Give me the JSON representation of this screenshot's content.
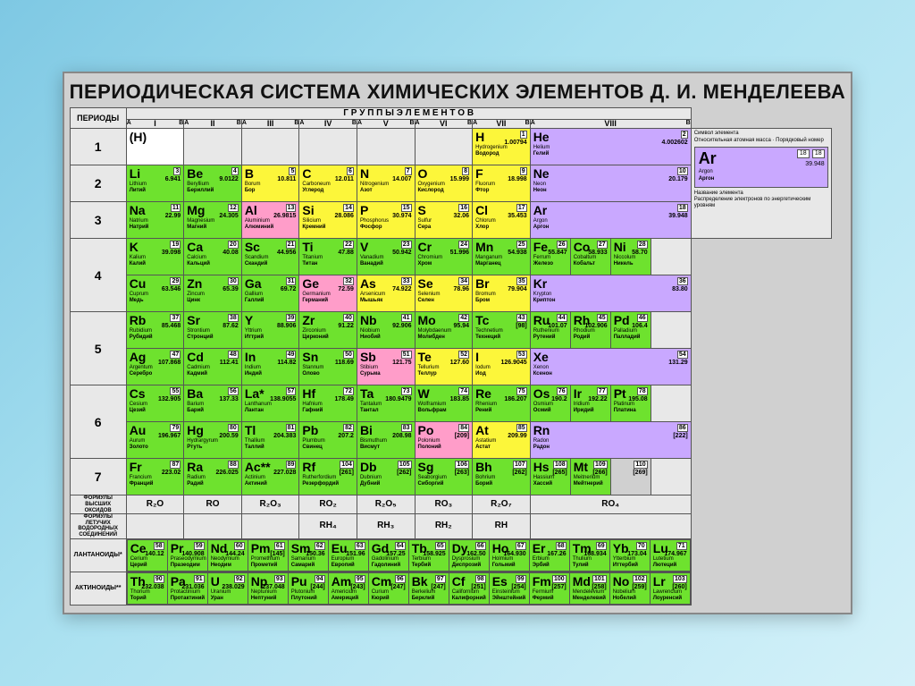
{
  "title": "ПЕРИОДИЧЕСКАЯ СИСТЕМА ХИМИЧЕСКИХ ЭЛЕМЕНТОВ Д. И. МЕНДЕЛЕЕВА",
  "labels": {
    "periods": "ПЕРИОДЫ",
    "groups": "Г Р У П П Ы   Э Л Е М Е Н Т О В",
    "oxide_formulas": "ФОРМУЛЫ ВЫСШИХ ОКСИДОВ",
    "hydride_formulas": "ФОРМУЛЫ ЛЕТУЧИХ ВОДОРОДНЫХ СОЕДИНЕНИЙ",
    "lanthanides": "ЛАНТАНОИДЫ*",
    "actinides": "АКТИНОИДЫ**"
  },
  "group_roman": [
    "I",
    "II",
    "III",
    "IV",
    "V",
    "VI",
    "VII",
    "VIII"
  ],
  "sub": [
    "A",
    "B"
  ],
  "oxides": [
    "R₂O",
    "RO",
    "R₂O₃",
    "RO₂",
    "R₂O₅",
    "RO₃",
    "R₂O₇",
    "RO₄"
  ],
  "hydrides": [
    "",
    "",
    "",
    "RH₄",
    "RH₃",
    "RH₂",
    "RH",
    ""
  ],
  "colors": {
    "green": "#6ee22e",
    "yellow": "#fcf63a",
    "violet": "#c9a8ff",
    "pink": "#ff9dc9",
    "grey": "#d0d0d0"
  },
  "legend": {
    "symbol_label": "Символ элемента",
    "mass_label": "Относительная атомная масса",
    "num_label": "Порядковый номер",
    "name_label": "Название элемента",
    "electron_label": "Распределение электронов по энергетическим уровням",
    "sample": {
      "sym": "Ar",
      "num": "18",
      "mass": "39.948",
      "la": "Argon",
      "ru": "Аргон",
      "shells": "2 8 8"
    }
  },
  "rows": [
    {
      "period": "1",
      "cells": [
        {
          "c": "white",
          "sym": "(H)"
        },
        null,
        null,
        null,
        null,
        null,
        {
          "c": "yellow",
          "sym": "H",
          "num": "1",
          "mass": "1.00794",
          "la": "Hydrogenium",
          "ru": "Водород"
        },
        {
          "c": "violet",
          "sym": "He",
          "num": "2",
          "mass": "4.002602",
          "la": "Helium",
          "ru": "Гелий"
        }
      ]
    },
    {
      "period": "2",
      "cells": [
        {
          "c": "green",
          "sym": "Li",
          "num": "3",
          "mass": "6.941",
          "la": "Lithium",
          "ru": "Литий"
        },
        {
          "c": "green",
          "sym": "Be",
          "num": "4",
          "mass": "9.0122",
          "la": "Beryllium",
          "ru": "Бериллий"
        },
        {
          "c": "yellow",
          "sym": "B",
          "num": "5",
          "mass": "10.811",
          "la": "Borum",
          "ru": "Бор"
        },
        {
          "c": "yellow",
          "sym": "C",
          "num": "6",
          "mass": "12.011",
          "la": "Carboneum",
          "ru": "Углерод"
        },
        {
          "c": "yellow",
          "sym": "N",
          "num": "7",
          "mass": "14.007",
          "la": "Nitrogenium",
          "ru": "Азот"
        },
        {
          "c": "yellow",
          "sym": "O",
          "num": "8",
          "mass": "15.999",
          "la": "Oxygenium",
          "ru": "Кислород"
        },
        {
          "c": "yellow",
          "sym": "F",
          "num": "9",
          "mass": "18.998",
          "la": "Fluorum",
          "ru": "Фтор"
        },
        {
          "c": "violet",
          "sym": "Ne",
          "num": "10",
          "mass": "20.179",
          "la": "Neon",
          "ru": "Неон"
        }
      ]
    },
    {
      "period": "3",
      "cells": [
        {
          "c": "green",
          "sym": "Na",
          "num": "11",
          "mass": "22.99",
          "la": "Natrium",
          "ru": "Натрий"
        },
        {
          "c": "green",
          "sym": "Mg",
          "num": "12",
          "mass": "24.305",
          "la": "Magnesium",
          "ru": "Магний"
        },
        {
          "c": "pink",
          "sym": "Al",
          "num": "13",
          "mass": "26.9815",
          "la": "Aluminium",
          "ru": "Алюминий"
        },
        {
          "c": "yellow",
          "sym": "Si",
          "num": "14",
          "mass": "28.086",
          "la": "Silicium",
          "ru": "Кремний"
        },
        {
          "c": "yellow",
          "sym": "P",
          "num": "15",
          "mass": "30.974",
          "la": "Phosphorus",
          "ru": "Фосфор"
        },
        {
          "c": "yellow",
          "sym": "S",
          "num": "16",
          "mass": "32.06",
          "la": "Sulfur",
          "ru": "Сера"
        },
        {
          "c": "yellow",
          "sym": "Cl",
          "num": "17",
          "mass": "35.453",
          "la": "Chlorum",
          "ru": "Хлор"
        },
        {
          "c": "violet",
          "sym": "Ar",
          "num": "18",
          "mass": "39.948",
          "la": "Argon",
          "ru": "Аргон"
        }
      ]
    },
    {
      "period": "4",
      "upper": [
        {
          "c": "green",
          "sym": "K",
          "num": "19",
          "mass": "39.098",
          "la": "Kalium",
          "ru": "Калий"
        },
        {
          "c": "green",
          "sym": "Ca",
          "num": "20",
          "mass": "40.08",
          "la": "Calcium",
          "ru": "Кальций"
        },
        {
          "c": "green",
          "sym": "Sc",
          "num": "21",
          "mass": "44.956",
          "la": "Scandium",
          "ru": "Скандий"
        },
        {
          "c": "green",
          "sym": "Ti",
          "num": "22",
          "mass": "47.88",
          "la": "Titanium",
          "ru": "Титан"
        },
        {
          "c": "green",
          "sym": "V",
          "num": "23",
          "mass": "50.942",
          "la": "Vanadium",
          "ru": "Ванадий"
        },
        {
          "c": "green",
          "sym": "Cr",
          "num": "24",
          "mass": "51.996",
          "la": "Chromium",
          "ru": "Хром"
        },
        {
          "c": "green",
          "sym": "Mn",
          "num": "25",
          "mass": "54.938",
          "la": "Manganum",
          "ru": "Марганец"
        },
        {
          "c": "green",
          "sym": "Fe",
          "num": "26",
          "mass": "55.847",
          "la": "Ferrum",
          "ru": "Железо"
        },
        {
          "c": "green",
          "sym": "Co",
          "num": "27",
          "mass": "58.933",
          "la": "Cobaltum",
          "ru": "Кобальт"
        },
        {
          "c": "green",
          "sym": "Ni",
          "num": "28",
          "mass": "58.70",
          "la": "Niccolum",
          "ru": "Никель"
        }
      ],
      "lower": [
        {
          "c": "green",
          "sym": "Cu",
          "num": "29",
          "mass": "63.546",
          "la": "Cuprum",
          "ru": "Медь"
        },
        {
          "c": "green",
          "sym": "Zn",
          "num": "30",
          "mass": "65.39",
          "la": "Zincum",
          "ru": "Цинк"
        },
        {
          "c": "green",
          "sym": "Ga",
          "num": "31",
          "mass": "69.72",
          "la": "Gallium",
          "ru": "Галлий"
        },
        {
          "c": "pink",
          "sym": "Ge",
          "num": "32",
          "mass": "72.59",
          "la": "Germanium",
          "ru": "Германий"
        },
        {
          "c": "yellow",
          "sym": "As",
          "num": "33",
          "mass": "74.922",
          "la": "Arsenicum",
          "ru": "Мышьяк"
        },
        {
          "c": "yellow",
          "sym": "Se",
          "num": "34",
          "mass": "78.96",
          "la": "Selenium",
          "ru": "Селен"
        },
        {
          "c": "yellow",
          "sym": "Br",
          "num": "35",
          "mass": "79.904",
          "la": "Bromum",
          "ru": "Бром"
        },
        {
          "c": "violet",
          "sym": "Kr",
          "num": "36",
          "mass": "83.80",
          "la": "Krypton",
          "ru": "Криптон"
        }
      ]
    },
    {
      "period": "5",
      "upper": [
        {
          "c": "green",
          "sym": "Rb",
          "num": "37",
          "mass": "85.468",
          "la": "Rubidium",
          "ru": "Рубидий"
        },
        {
          "c": "green",
          "sym": "Sr",
          "num": "38",
          "mass": "87.62",
          "la": "Strontium",
          "ru": "Стронций"
        },
        {
          "c": "green",
          "sym": "Y",
          "num": "39",
          "mass": "88.906",
          "la": "Yttrium",
          "ru": "Иттрий"
        },
        {
          "c": "green",
          "sym": "Zr",
          "num": "40",
          "mass": "91.22",
          "la": "Zirconium",
          "ru": "Цирконий"
        },
        {
          "c": "green",
          "sym": "Nb",
          "num": "41",
          "mass": "92.906",
          "la": "Niobium",
          "ru": "Ниобий"
        },
        {
          "c": "green",
          "sym": "Mo",
          "num": "42",
          "mass": "95.94",
          "la": "Molybdaenum",
          "ru": "Молибден"
        },
        {
          "c": "green",
          "sym": "Tc",
          "num": "43",
          "mass": "[98]",
          "la": "Technetium",
          "ru": "Технеций"
        },
        {
          "c": "green",
          "sym": "Ru",
          "num": "44",
          "mass": "101.07",
          "la": "Ruthenium",
          "ru": "Рутений"
        },
        {
          "c": "green",
          "sym": "Rh",
          "num": "45",
          "mass": "102.906",
          "la": "Rhodium",
          "ru": "Родий"
        },
        {
          "c": "green",
          "sym": "Pd",
          "num": "46",
          "mass": "106.4",
          "la": "Palladium",
          "ru": "Палладий"
        }
      ],
      "lower": [
        {
          "c": "green",
          "sym": "Ag",
          "num": "47",
          "mass": "107.868",
          "la": "Argentum",
          "ru": "Серебро"
        },
        {
          "c": "green",
          "sym": "Cd",
          "num": "48",
          "mass": "112.41",
          "la": "Cadmium",
          "ru": "Кадмий"
        },
        {
          "c": "green",
          "sym": "In",
          "num": "49",
          "mass": "114.82",
          "la": "Indium",
          "ru": "Индий"
        },
        {
          "c": "green",
          "sym": "Sn",
          "num": "50",
          "mass": "118.69",
          "la": "Stannum",
          "ru": "Олово"
        },
        {
          "c": "pink",
          "sym": "Sb",
          "num": "51",
          "mass": "121.75",
          "la": "Stibium",
          "ru": "Сурьма"
        },
        {
          "c": "yellow",
          "sym": "Te",
          "num": "52",
          "mass": "127.60",
          "la": "Tellurium",
          "ru": "Теллур"
        },
        {
          "c": "yellow",
          "sym": "I",
          "num": "53",
          "mass": "126.9045",
          "la": "Iodum",
          "ru": "Иод"
        },
        {
          "c": "violet",
          "sym": "Xe",
          "num": "54",
          "mass": "131.29",
          "la": "Xenon",
          "ru": "Ксенон"
        }
      ]
    },
    {
      "period": "6",
      "upper": [
        {
          "c": "green",
          "sym": "Cs",
          "num": "55",
          "mass": "132.905",
          "la": "Cesium",
          "ru": "Цезий"
        },
        {
          "c": "green",
          "sym": "Ba",
          "num": "56",
          "mass": "137.33",
          "la": "Barium",
          "ru": "Барий"
        },
        {
          "c": "green",
          "sym": "La*",
          "num": "57",
          "mass": "138.9055",
          "la": "Lanthanum",
          "ru": "Лантан"
        },
        {
          "c": "green",
          "sym": "Hf",
          "num": "72",
          "mass": "178.49",
          "la": "Hafnium",
          "ru": "Гафний"
        },
        {
          "c": "green",
          "sym": "Ta",
          "num": "73",
          "mass": "180.9479",
          "la": "Tantalum",
          "ru": "Тантал"
        },
        {
          "c": "green",
          "sym": "W",
          "num": "74",
          "mass": "183.85",
          "la": "Wolframium",
          "ru": "Вольфрам"
        },
        {
          "c": "green",
          "sym": "Re",
          "num": "75",
          "mass": "186.207",
          "la": "Rhenium",
          "ru": "Рений"
        },
        {
          "c": "green",
          "sym": "Os",
          "num": "76",
          "mass": "190.2",
          "la": "Osmium",
          "ru": "Осмий"
        },
        {
          "c": "green",
          "sym": "Ir",
          "num": "77",
          "mass": "192.22",
          "la": "Iridium",
          "ru": "Иридий"
        },
        {
          "c": "green",
          "sym": "Pt",
          "num": "78",
          "mass": "195.08",
          "la": "Platinum",
          "ru": "Платина"
        }
      ],
      "lower": [
        {
          "c": "green",
          "sym": "Au",
          "num": "79",
          "mass": "196.967",
          "la": "Aurum",
          "ru": "Золото"
        },
        {
          "c": "green",
          "sym": "Hg",
          "num": "80",
          "mass": "200.59",
          "la": "Hydrargyrum",
          "ru": "Ртуть"
        },
        {
          "c": "green",
          "sym": "Tl",
          "num": "81",
          "mass": "204.383",
          "la": "Thallium",
          "ru": "Таллий"
        },
        {
          "c": "green",
          "sym": "Pb",
          "num": "82",
          "mass": "207.2",
          "la": "Plumbum",
          "ru": "Свинец"
        },
        {
          "c": "green",
          "sym": "Bi",
          "num": "83",
          "mass": "208.98",
          "la": "Bismuthum",
          "ru": "Висмут"
        },
        {
          "c": "pink",
          "sym": "Po",
          "num": "84",
          "mass": "[209]",
          "la": "Polonium",
          "ru": "Полоний"
        },
        {
          "c": "yellow",
          "sym": "At",
          "num": "85",
          "mass": "209.99",
          "la": "Astatium",
          "ru": "Астат"
        },
        {
          "c": "violet",
          "sym": "Rn",
          "num": "86",
          "mass": "[222]",
          "la": "Radon",
          "ru": "Радон"
        }
      ]
    },
    {
      "period": "7",
      "cells": [
        {
          "c": "green",
          "sym": "Fr",
          "num": "87",
          "mass": "223.02",
          "la": "Francium",
          "ru": "Франций"
        },
        {
          "c": "green",
          "sym": "Ra",
          "num": "88",
          "mass": "226.025",
          "la": "Radium",
          "ru": "Радий"
        },
        {
          "c": "green",
          "sym": "Ac**",
          "num": "89",
          "mass": "227.028",
          "la": "Actinium",
          "ru": "Актиний"
        },
        {
          "c": "green",
          "sym": "Rf",
          "num": "104",
          "mass": "[261]",
          "la": "Rutherfordium",
          "ru": "Резерфордий"
        },
        {
          "c": "green",
          "sym": "Db",
          "num": "105",
          "mass": "[262]",
          "la": "Dubnium",
          "ru": "Дубний"
        },
        {
          "c": "green",
          "sym": "Sg",
          "num": "106",
          "mass": "[263]",
          "la": "Seaborgium",
          "ru": "Сиборгий"
        },
        {
          "c": "green",
          "sym": "Bh",
          "num": "107",
          "mass": "[262]",
          "la": "Bohrium",
          "ru": "Борий"
        },
        {
          "c": "green",
          "sym": "Hs",
          "num": "108",
          "mass": "[265]",
          "la": "Hassium",
          "ru": "Хассий"
        },
        {
          "c": "green",
          "sym": "Mt",
          "num": "109",
          "mass": "[266]",
          "la": "Meitnerium",
          "ru": "Мейтнерий"
        },
        {
          "c": "grey",
          "sym": "",
          "num": "110",
          "mass": "[269]"
        }
      ]
    }
  ],
  "lanthanides": [
    {
      "sym": "Ce",
      "num": "58",
      "mass": "140.12",
      "la": "Cerium",
      "ru": "Церий"
    },
    {
      "sym": "Pr",
      "num": "59",
      "mass": "140.908",
      "la": "Praseodymium",
      "ru": "Празеодим"
    },
    {
      "sym": "Nd",
      "num": "60",
      "mass": "144.24",
      "la": "Neodymium",
      "ru": "Неодим"
    },
    {
      "sym": "Pm",
      "num": "61",
      "mass": "[145]",
      "la": "Promethium",
      "ru": "Прометий"
    },
    {
      "sym": "Sm",
      "num": "62",
      "mass": "150.36",
      "la": "Samarium",
      "ru": "Самарий"
    },
    {
      "sym": "Eu",
      "num": "63",
      "mass": "151.96",
      "la": "Europium",
      "ru": "Европий"
    },
    {
      "sym": "Gd",
      "num": "64",
      "mass": "157.25",
      "la": "Gadolinium",
      "ru": "Гадолиний"
    },
    {
      "sym": "Tb",
      "num": "65",
      "mass": "158.925",
      "la": "Terbium",
      "ru": "Тербий"
    },
    {
      "sym": "Dy",
      "num": "66",
      "mass": "162.50",
      "la": "Dysprosium",
      "ru": "Диспрозий"
    },
    {
      "sym": "Ho",
      "num": "67",
      "mass": "164.930",
      "la": "Holmium",
      "ru": "Гольмий"
    },
    {
      "sym": "Er",
      "num": "68",
      "mass": "167.26",
      "la": "Erbium",
      "ru": "Эрбий"
    },
    {
      "sym": "Tm",
      "num": "69",
      "mass": "168.934",
      "la": "Thulium",
      "ru": "Тулий"
    },
    {
      "sym": "Yb",
      "num": "70",
      "mass": "173.04",
      "la": "Ytterbium",
      "ru": "Иттербий"
    },
    {
      "sym": "Lu",
      "num": "71",
      "mass": "174.967",
      "la": "Lutetium",
      "ru": "Лютеций"
    }
  ],
  "actinides": [
    {
      "sym": "Th",
      "num": "90",
      "mass": "232.038",
      "la": "Thorium",
      "ru": "Торий"
    },
    {
      "sym": "Pa",
      "num": "91",
      "mass": "231.036",
      "la": "Protactinium",
      "ru": "Протактиний"
    },
    {
      "sym": "U",
      "num": "92",
      "mass": "238.029",
      "la": "Uranium",
      "ru": "Уран"
    },
    {
      "sym": "Np",
      "num": "93",
      "mass": "237.048",
      "la": "Neptunium",
      "ru": "Нептуний"
    },
    {
      "sym": "Pu",
      "num": "94",
      "mass": "[244]",
      "la": "Plutonium",
      "ru": "Плутоний"
    },
    {
      "sym": "Am",
      "num": "95",
      "mass": "[243]",
      "la": "Americium",
      "ru": "Америций"
    },
    {
      "sym": "Cm",
      "num": "96",
      "mass": "[247]",
      "la": "Curium",
      "ru": "Кюрий"
    },
    {
      "sym": "Bk",
      "num": "97",
      "mass": "[247]",
      "la": "Berkelium",
      "ru": "Берклий"
    },
    {
      "sym": "Cf",
      "num": "98",
      "mass": "[251]",
      "la": "Californium",
      "ru": "Калифорний"
    },
    {
      "sym": "Es",
      "num": "99",
      "mass": "[254]",
      "la": "Einsteinium",
      "ru": "Эйнштейний"
    },
    {
      "sym": "Fm",
      "num": "100",
      "mass": "[257]",
      "la": "Fermium",
      "ru": "Фермий"
    },
    {
      "sym": "Md",
      "num": "101",
      "mass": "[258]",
      "la": "Mendelevium",
      "ru": "Менделевий"
    },
    {
      "sym": "No",
      "num": "102",
      "mass": "[259]",
      "la": "Nobelium",
      "ru": "Нобелий"
    },
    {
      "sym": "Lr",
      "num": "103",
      "mass": "[260]",
      "la": "Lawrencium",
      "ru": "Лоуренсий"
    }
  ]
}
